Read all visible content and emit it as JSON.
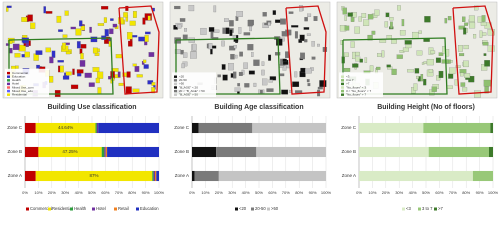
{
  "maps": [
    {
      "legend": [
        {
          "label": "Commercial",
          "color": "#c00000"
        },
        {
          "label": "Education",
          "color": "#3030c8"
        },
        {
          "label": "Health",
          "color": "#2e9e3e"
        },
        {
          "label": "Hotel",
          "color": "#7030a0"
        },
        {
          "label": "Mixed Use_com",
          "color": "#ff6060"
        },
        {
          "label": "Mixed Use_edu",
          "color": "#6060ff"
        },
        {
          "label": "Residential",
          "color": "#f2e600"
        }
      ]
    },
    {
      "legend": [
        {
          "label": "<20",
          "color": "#111111"
        },
        {
          "label": "20-50",
          "color": "#777777"
        },
        {
          "label": ">50",
          "color": "#c8c8c8"
        },
        {
          "label": "\"B_AGE\" < 20",
          "color": "#111111"
        },
        {
          "label": "20 < \"B_AGE\" < 50",
          "color": "#777777"
        },
        {
          "label": "\"B_AGE\" > 50",
          "color": "#c8c8c8"
        }
      ]
    },
    {
      "legend": [
        {
          "label": "<3",
          "color": "#cfe5b8"
        },
        {
          "label": "3 to 7",
          "color": "#8fc070"
        },
        {
          "label": ">7",
          "color": "#3d7a2a"
        },
        {
          "label": "\"No_floors\" < 3",
          "color": "#cfe5b8"
        },
        {
          "label": "3 < \"No_floors\" < 7",
          "color": "#8fc070"
        },
        {
          "label": "\"No_floors\" > 7",
          "color": "#3d7a2a"
        }
      ]
    }
  ],
  "chart_data": [
    {
      "type": "bar",
      "orientation": "horizontal",
      "stacked": true,
      "title": "Building Use classification",
      "categories": [
        "Zone A",
        "Zone B",
        "Zone C"
      ],
      "series": [
        {
          "name": "Commercial",
          "color": "#c00000",
          "values": [
            8,
            10,
            8
          ]
        },
        {
          "name": "Residential",
          "color": "#f2e600",
          "values": [
            87,
            47.25,
            44.64
          ],
          "value_labels": [
            "87%",
            "47.25%",
            "44.64%"
          ]
        },
        {
          "name": "Health",
          "color": "#2e9e3e",
          "values": [
            1,
            2,
            1
          ]
        },
        {
          "name": "Hotel",
          "color": "#7030a0",
          "values": [
            1,
            1,
            1
          ]
        },
        {
          "name": "Retail",
          "color": "#f08020",
          "values": [
            1,
            1,
            0
          ]
        },
        {
          "name": "Education",
          "color": "#2030c0",
          "values": [
            2,
            38.75,
            45.36
          ]
        }
      ],
      "xlim": [
        0,
        100
      ],
      "xticks": [
        {
          "value": 0,
          "label": "0%"
        },
        {
          "value": 10,
          "label": "10%"
        },
        {
          "value": 20,
          "label": "20%"
        },
        {
          "value": 30,
          "label": "30%"
        },
        {
          "value": 40,
          "label": "40%"
        },
        {
          "value": 50,
          "label": "50%"
        },
        {
          "value": 60,
          "label": "60%"
        },
        {
          "value": 70,
          "label": "70%"
        },
        {
          "value": 80,
          "label": "80%"
        },
        {
          "value": 90,
          "label": "90%"
        },
        {
          "value": 100,
          "label": "100%"
        }
      ],
      "grid": true
    },
    {
      "type": "bar",
      "orientation": "horizontal",
      "stacked": true,
      "title": "Building Age classification",
      "categories": [
        "Zone A",
        "Zone B",
        "Zone C"
      ],
      "series": [
        {
          "name": "<20",
          "color": "#111111",
          "values": [
            2,
            18,
            5
          ]
        },
        {
          "name": "20-50",
          "color": "#7a7a7a",
          "values": [
            18,
            30,
            40
          ]
        },
        {
          "name": ">50",
          "color": "#c4c4c4",
          "values": [
            80,
            52,
            55
          ]
        }
      ],
      "xlim": [
        0,
        100
      ],
      "xticks": [
        {
          "value": 0,
          "label": "0%"
        },
        {
          "value": 10,
          "label": "10%"
        },
        {
          "value": 20,
          "label": "20%"
        },
        {
          "value": 30,
          "label": "30%"
        },
        {
          "value": 40,
          "label": "40%"
        },
        {
          "value": 50,
          "label": "50%"
        },
        {
          "value": 60,
          "label": "60%"
        },
        {
          "value": 70,
          "label": "70%"
        },
        {
          "value": 80,
          "label": "80%"
        },
        {
          "value": 90,
          "label": "90%"
        },
        {
          "value": 100,
          "label": "100%"
        }
      ],
      "grid": true
    },
    {
      "type": "bar",
      "orientation": "horizontal",
      "stacked": true,
      "title": "Building Height (No of floors)",
      "categories": [
        "Zone A",
        "Zone B",
        "Zone C"
      ],
      "series": [
        {
          "name": "<3",
          "color": "#d9ebc6",
          "values": [
            85,
            52,
            48
          ]
        },
        {
          "name": "3 to 7",
          "color": "#98c878",
          "values": [
            15,
            45,
            50
          ]
        },
        {
          "name": ">7",
          "color": "#3d7a2a",
          "values": [
            0,
            3,
            2
          ]
        }
      ],
      "xlim": [
        0,
        100
      ],
      "xticks": [
        {
          "value": 0,
          "label": "0%"
        },
        {
          "value": 10,
          "label": "10%"
        },
        {
          "value": 20,
          "label": "20%"
        },
        {
          "value": 30,
          "label": "30%"
        },
        {
          "value": 40,
          "label": "40%"
        },
        {
          "value": 50,
          "label": "50%"
        },
        {
          "value": 60,
          "label": "60%"
        },
        {
          "value": 70,
          "label": "70%"
        },
        {
          "value": 80,
          "label": "80%"
        },
        {
          "value": 90,
          "label": "90%"
        },
        {
          "value": 100,
          "label": "100%"
        }
      ],
      "grid": true
    }
  ]
}
